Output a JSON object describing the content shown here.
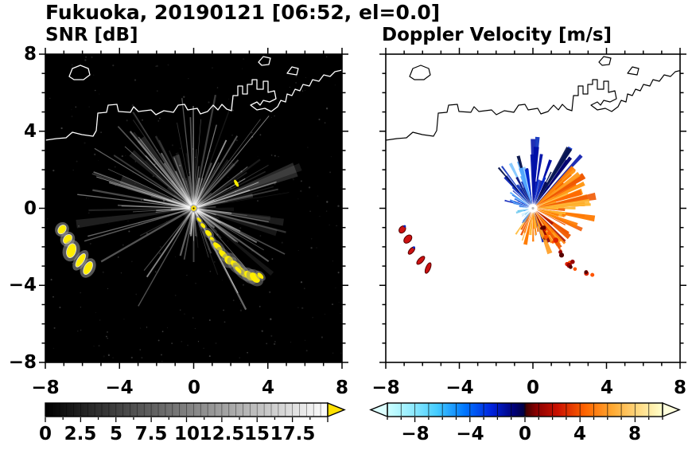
{
  "header": {
    "title": "Fukuoka, 20190121 [06:52, el=0.0]"
  },
  "panels": {
    "snr": {
      "label": "SNR [dB]",
      "xtick_labels": [
        "−8",
        "−4",
        "0",
        "4",
        "8"
      ],
      "ytick_labels": [
        "8",
        "4",
        "0",
        "−4",
        "−8"
      ],
      "colorbar_tick_labels": [
        "0",
        "2.5",
        "5",
        "7.5",
        "10",
        "12.5",
        "15",
        "17.5"
      ]
    },
    "doppler": {
      "label": "Doppler Velocity [m/s]",
      "xtick_labels": [
        "−8",
        "−4",
        "0",
        "4",
        "8"
      ],
      "colorbar_tick_labels": [
        "−8",
        "−4",
        "0",
        "4",
        "8"
      ]
    }
  },
  "chart_data": [
    {
      "type": "heatmap",
      "panel": "left",
      "title": "SNR [dB]",
      "xlim": [
        -8,
        8
      ],
      "ylim": [
        -8,
        8
      ],
      "xticks": [
        -8,
        -4,
        0,
        4,
        8
      ],
      "yticks": [
        -8,
        -4,
        0,
        4,
        8
      ],
      "minor_tick_step": 1,
      "background_value_color": "#000000",
      "radar_site": [
        0,
        0
      ],
      "content": "PPI radar display: faint gray radial beam streaks of low-SNR noise radiating from the radar site at the origin over a black (no-signal) background; white coastline with islands across the upper part; bright yellow above-scale ground-clutter echoes southwest of the site and along a chain running southeast from the site",
      "colorbar": {
        "range": [
          0,
          20
        ],
        "label_values": [
          0,
          2.5,
          5,
          7.5,
          10,
          12.5,
          15,
          17.5
        ],
        "segments": 40,
        "colors": [
          [
            0,
            "#000000"
          ],
          [
            1,
            "#ffffff"
          ]
        ],
        "over_arrow_color": "#ffe100"
      },
      "echoes": {
        "southwest_chain": [
          [
            -7.1,
            -1.1
          ],
          [
            -6.8,
            -1.6
          ],
          [
            -6.6,
            -2.2
          ],
          [
            -6.1,
            -2.7
          ],
          [
            -5.7,
            -3.1
          ]
        ],
        "southeast_chain": [
          [
            0.3,
            -0.6
          ],
          [
            0.5,
            -0.9
          ],
          [
            0.8,
            -1.3
          ],
          [
            1.0,
            -1.6
          ],
          [
            1.3,
            -2.0
          ],
          [
            1.6,
            -2.4
          ],
          [
            1.9,
            -2.7
          ],
          [
            2.3,
            -3.0
          ],
          [
            2.6,
            -3.3
          ],
          [
            3.0,
            -3.5
          ],
          [
            3.3,
            -3.6
          ],
          [
            3.6,
            -3.5
          ],
          [
            2.4,
            -3.2
          ]
        ],
        "northeast_spot": [
          [
            2.3,
            1.3
          ]
        ]
      }
    },
    {
      "type": "heatmap",
      "panel": "right",
      "title": "Doppler Velocity [m/s]",
      "xlim": [
        -8,
        8
      ],
      "ylim": [
        -8,
        8
      ],
      "xticks": [
        -8,
        -4,
        0,
        4,
        8
      ],
      "yticks": [
        -8,
        -4,
        0,
        4,
        8
      ],
      "minor_tick_step": 1,
      "background_value_color": "#ffffff",
      "radar_site": [
        0,
        0
      ],
      "content": "Doppler velocity fan around the radar site: negative velocities (dark blue, toward radar) on spikes pointing north/northwest, positive velocities (orange-red, away from radar) east and southeast, short light-blue spikes to the west; black coastline; red clutter echoes southwest and dotted red chain to the southeast",
      "colorbar": {
        "range": [
          -10,
          10
        ],
        "label_values": [
          -8,
          -4,
          0,
          4,
          8
        ],
        "segments": 20,
        "colors": [
          [
            0,
            "#ccffff"
          ],
          [
            0.08,
            "#99eeff"
          ],
          [
            0.18,
            "#44ccff"
          ],
          [
            0.28,
            "#0077ff"
          ],
          [
            0.38,
            "#0022dd"
          ],
          [
            0.46,
            "#000077"
          ],
          [
            0.495,
            "#000044"
          ],
          [
            0.505,
            "#440000"
          ],
          [
            0.54,
            "#880000"
          ],
          [
            0.62,
            "#cc1100"
          ],
          [
            0.72,
            "#ff6600"
          ],
          [
            0.82,
            "#ffaa33"
          ],
          [
            0.92,
            "#ffdd88"
          ],
          [
            1,
            "#ffffcc"
          ]
        ],
        "under_arrow_color": "#ddffff",
        "over_arrow_color": "#ffffdd"
      },
      "echoes": {
        "southwest_chain": [
          [
            -7.1,
            -1.1
          ],
          [
            -6.8,
            -1.6
          ],
          [
            -6.6,
            -2.2
          ],
          [
            -6.1,
            -2.7
          ],
          [
            -5.7,
            -3.1
          ]
        ],
        "southeast_chain": [
          [
            0.6,
            -1.0
          ],
          [
            0.8,
            -1.4
          ],
          [
            1.1,
            -1.8
          ],
          [
            1.5,
            -2.3
          ],
          [
            2.0,
            -2.8
          ],
          [
            2.4,
            -3.1
          ],
          [
            2.8,
            -3.4
          ],
          [
            3.2,
            -3.6
          ],
          [
            1.9,
            -3.0
          ]
        ]
      }
    }
  ]
}
